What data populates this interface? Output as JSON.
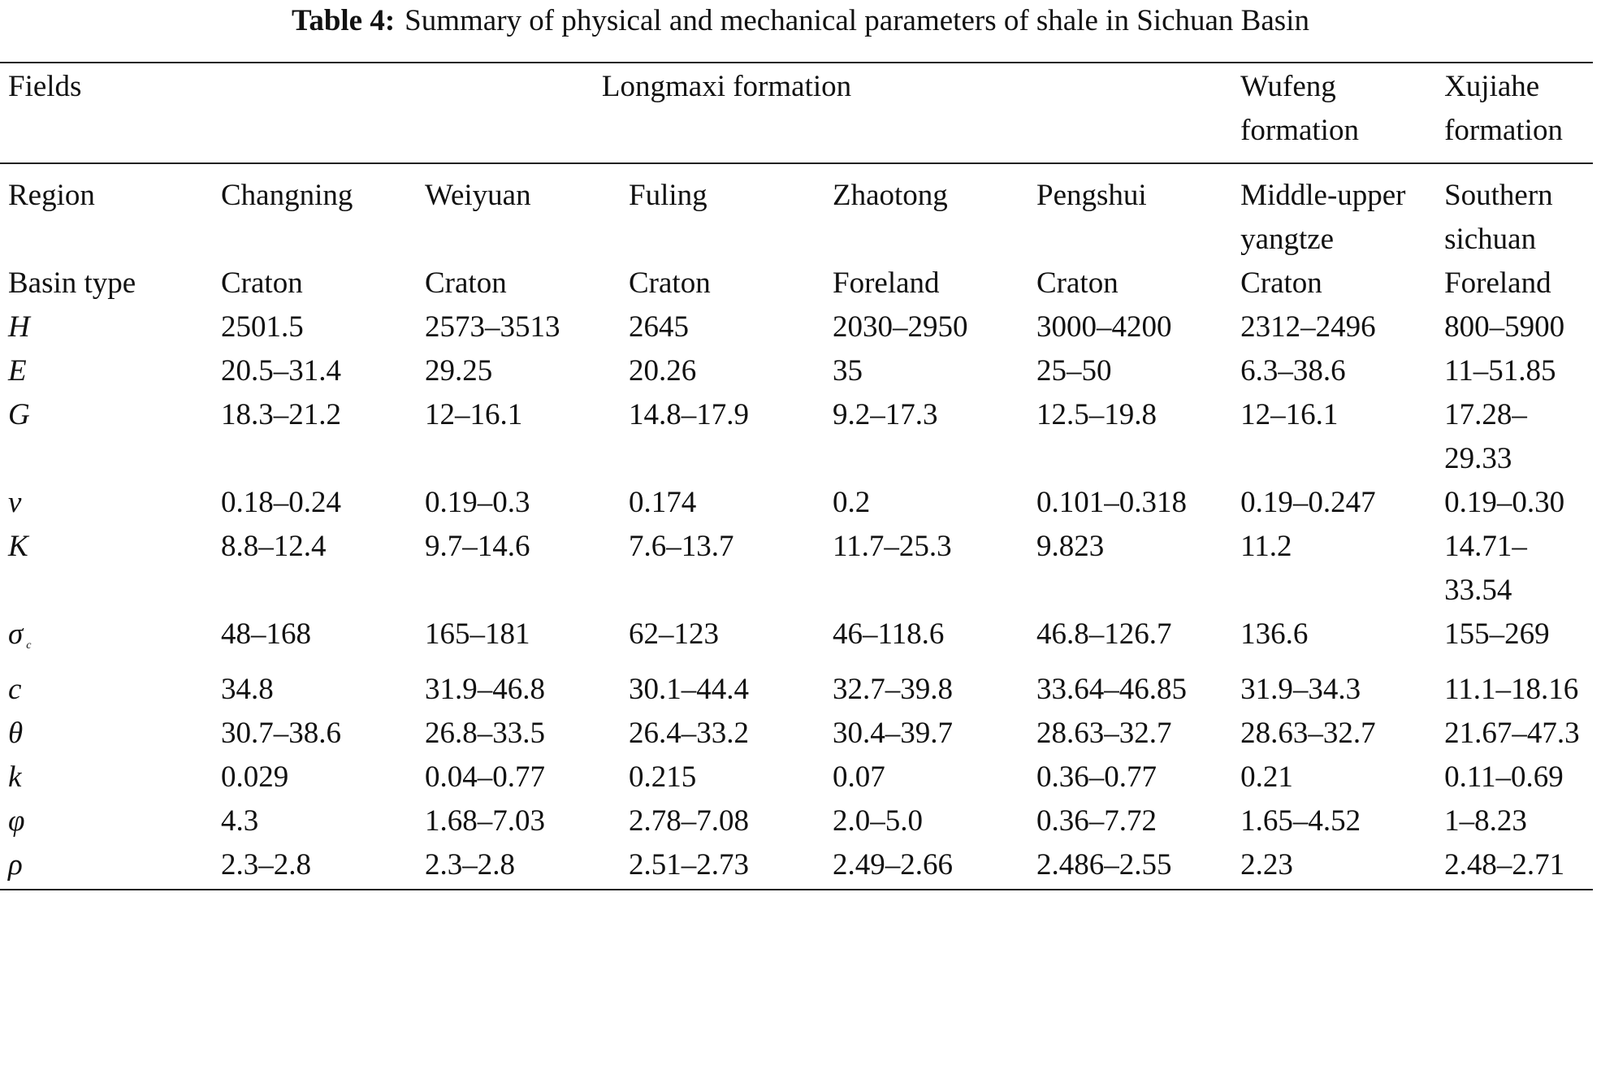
{
  "title": {
    "label": "Table 4:",
    "text": "Summary of physical and mechanical parameters of shale in Sichuan Basin"
  },
  "header": {
    "fields": "Fields",
    "groups": [
      {
        "text": "Longmaxi formation",
        "span": 5
      },
      {
        "text": "Wufeng formation",
        "span": 1
      },
      {
        "text": "Xujiahe formation",
        "span": 1
      }
    ]
  },
  "region": {
    "label": "Region",
    "values": [
      "Changning",
      "Weiyuan",
      "Fuling",
      "Zhaotong",
      "Pengshui",
      "Middle-upper yangtze",
      "Southern sichuan"
    ]
  },
  "rows": [
    {
      "label": "Basin type",
      "italic": false,
      "values": [
        "Craton",
        "Craton",
        "Craton",
        "Foreland",
        "Craton",
        "Craton",
        "Foreland"
      ]
    },
    {
      "label": "H",
      "italic": true,
      "values": [
        "2501.5",
        "2573–3513",
        "2645",
        "2030–2950",
        "3000–4200",
        "2312–2496",
        "800–5900"
      ]
    },
    {
      "label": "E",
      "italic": true,
      "values": [
        "20.5–31.4",
        "29.25",
        "20.26",
        "35",
        "25–50",
        "6.3–38.6",
        "11–51.85"
      ]
    },
    {
      "label": "G",
      "italic": true,
      "values": [
        "18.3–21.2",
        "12–16.1",
        "14.8–17.9",
        "9.2–17.3",
        "12.5–19.8",
        "12–16.1",
        "17.28–29.33"
      ]
    },
    {
      "label": "v",
      "italic": true,
      "values": [
        "0.18–0.24",
        "0.19–0.3",
        "0.174",
        "0.2",
        "0.101–0.318",
        "0.19–0.247",
        "0.19–0.30"
      ]
    },
    {
      "label": "K",
      "italic": true,
      "values": [
        "8.8–12.4",
        "9.7–14.6",
        "7.6–13.7",
        "11.7–25.3",
        "9.823",
        "11.2",
        "14.71–33.54"
      ]
    },
    {
      "label": "σ",
      "subscript": "c",
      "italic": true,
      "values": [
        "48–168",
        "165–181",
        "62–123",
        "46–118.6",
        "46.8–126.7",
        "136.6",
        "155–269"
      ]
    },
    {
      "label": "c",
      "italic": true,
      "values": [
        "34.8",
        "31.9–46.8",
        "30.1–44.4",
        "32.7–39.8",
        "33.64–46.85",
        "31.9–34.3",
        "11.1–18.16"
      ]
    },
    {
      "label": "θ",
      "italic": true,
      "values": [
        "30.7–38.6",
        "26.8–33.5",
        "26.4–33.2",
        "30.4–39.7",
        "28.63–32.7",
        "28.63–32.7",
        "21.67–47.3"
      ]
    },
    {
      "label": "k",
      "italic": true,
      "values": [
        "0.029",
        "0.04–0.77",
        "0.215",
        "0.07",
        "0.36–0.77",
        "0.21",
        "0.11–0.69"
      ]
    },
    {
      "label": "φ",
      "italic": true,
      "values": [
        "4.3",
        "1.68–7.03",
        "2.78–7.08",
        "2.0–5.0",
        "0.36–7.72",
        "1.65–4.52",
        "1–8.23"
      ]
    },
    {
      "label": "ρ",
      "italic": true,
      "values": [
        "2.3–2.8",
        "2.3–2.8",
        "2.51–2.73",
        "2.49–2.66",
        "2.486–2.55",
        "2.23",
        "2.48–2.71"
      ]
    }
  ]
}
